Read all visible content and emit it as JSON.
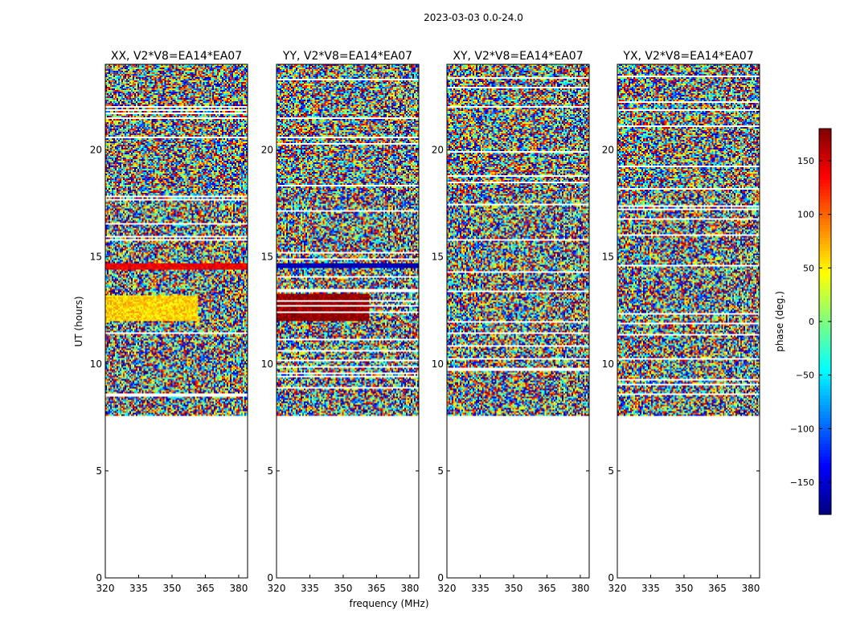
{
  "suptitle": "2023-03-03 0.0-24.0",
  "chart_data": {
    "type": "heatmap",
    "title": "2023-03-03 0.0-24.0",
    "xlabel": "frequency (MHz)",
    "ylabel": "UT (hours)",
    "xlim": [
      320,
      384
    ],
    "ylim": [
      0,
      24
    ],
    "xticks": [
      "320",
      "335",
      "350",
      "365",
      "380"
    ],
    "xtick_values": [
      320,
      335,
      350,
      365,
      380
    ],
    "yticks": [
      "0",
      "5",
      "10",
      "15",
      "20"
    ],
    "ytick_values": [
      0,
      5,
      10,
      15,
      20
    ],
    "data_start_hour": 7.6,
    "data_end_hour": 24.0,
    "panels": [
      {
        "title": "XX, V2*V8=EA14*EA07",
        "polarization": "XX",
        "feature_band_hours": [
          14.4,
          14.7
        ],
        "feature_band_value": 140,
        "feature_band2_hours": [
          12.0,
          13.2
        ],
        "feature_band2_value": 60
      },
      {
        "title": "YY, V2*V8=EA14*EA07",
        "polarization": "YY",
        "feature_band_hours": [
          14.5,
          14.7
        ],
        "feature_band_value": -160,
        "feature_band2_hours": [
          12.0,
          13.3
        ],
        "feature_band2_value": 175
      },
      {
        "title": "XY, V2*V8=EA14*EA07",
        "polarization": "XY"
      },
      {
        "title": "YX, V2*V8=EA14*EA07",
        "polarization": "YX"
      }
    ],
    "colorbar": {
      "label": "phase (deg.)",
      "range": [
        -180,
        180
      ],
      "ticks": [
        "150",
        "100",
        "50",
        "0",
        "−50",
        "−100",
        "−150"
      ],
      "tick_values": [
        150,
        100,
        50,
        0,
        -50,
        -100,
        -150
      ],
      "colormap": "jet"
    }
  }
}
